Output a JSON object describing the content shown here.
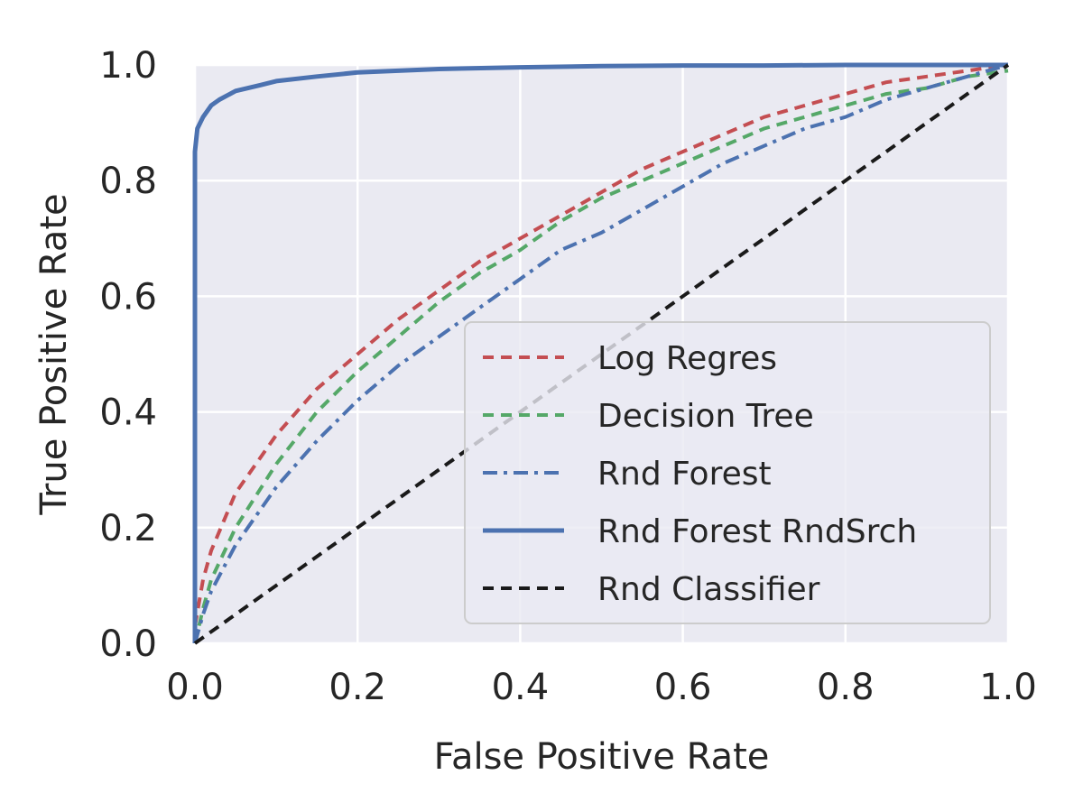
{
  "chart_data": {
    "type": "line",
    "title": "",
    "xlabel": "False Positive Rate",
    "ylabel": "True Positive Rate",
    "xlim": [
      0.0,
      1.0
    ],
    "ylim": [
      0.0,
      1.0
    ],
    "x_ticks": [
      "0.0",
      "0.2",
      "0.4",
      "0.6",
      "0.8",
      "1.0"
    ],
    "y_ticks": [
      "0.0",
      "0.2",
      "0.4",
      "0.6",
      "0.8",
      "1.0"
    ],
    "grid": true,
    "legend_position": "lower-right",
    "series": [
      {
        "name": "Log Regres",
        "color": "#c44e52",
        "style": "dashed",
        "x": [
          0.0,
          0.01,
          0.02,
          0.05,
          0.1,
          0.15,
          0.2,
          0.25,
          0.3,
          0.35,
          0.4,
          0.45,
          0.5,
          0.55,
          0.6,
          0.65,
          0.7,
          0.75,
          0.8,
          0.85,
          0.9,
          0.95,
          1.0
        ],
        "y": [
          0.03,
          0.11,
          0.16,
          0.26,
          0.36,
          0.44,
          0.5,
          0.56,
          0.61,
          0.66,
          0.7,
          0.74,
          0.78,
          0.82,
          0.85,
          0.88,
          0.91,
          0.93,
          0.95,
          0.97,
          0.98,
          0.99,
          1.0
        ]
      },
      {
        "name": "Decision Tree",
        "color": "#55a868",
        "style": "dashed",
        "x": [
          0.0,
          0.01,
          0.02,
          0.05,
          0.1,
          0.15,
          0.2,
          0.25,
          0.3,
          0.35,
          0.4,
          0.45,
          0.5,
          0.55,
          0.6,
          0.65,
          0.7,
          0.75,
          0.8,
          0.85,
          0.9,
          0.95,
          1.0
        ],
        "y": [
          0.0,
          0.06,
          0.11,
          0.2,
          0.31,
          0.4,
          0.47,
          0.53,
          0.59,
          0.64,
          0.68,
          0.73,
          0.77,
          0.8,
          0.83,
          0.86,
          0.89,
          0.91,
          0.93,
          0.95,
          0.96,
          0.98,
          0.99
        ]
      },
      {
        "name": "Rnd Forest",
        "color": "#4c72b0",
        "style": "dashdot",
        "x": [
          0.0,
          0.01,
          0.02,
          0.05,
          0.1,
          0.15,
          0.2,
          0.25,
          0.3,
          0.35,
          0.4,
          0.45,
          0.5,
          0.55,
          0.6,
          0.65,
          0.7,
          0.75,
          0.8,
          0.85,
          0.9,
          0.95,
          1.0
        ],
        "y": [
          0.0,
          0.05,
          0.09,
          0.17,
          0.27,
          0.35,
          0.42,
          0.48,
          0.53,
          0.58,
          0.63,
          0.68,
          0.71,
          0.75,
          0.79,
          0.83,
          0.86,
          0.89,
          0.91,
          0.94,
          0.96,
          0.98,
          1.0
        ]
      },
      {
        "name": "Rnd Forest RndSrch",
        "color": "#4c72b0",
        "style": "solid",
        "x": [
          0.0,
          0.0,
          0.003,
          0.01,
          0.02,
          0.03,
          0.05,
          0.08,
          0.1,
          0.15,
          0.2,
          0.3,
          0.4,
          0.5,
          0.6,
          0.7,
          0.8,
          0.9,
          1.0
        ],
        "y": [
          0.0,
          0.85,
          0.89,
          0.91,
          0.93,
          0.94,
          0.955,
          0.965,
          0.972,
          0.98,
          0.987,
          0.993,
          0.996,
          0.998,
          0.999,
          0.999,
          1.0,
          1.0,
          1.0
        ]
      },
      {
        "name": "Rnd Classifier",
        "color": "#1a1a1a",
        "style": "dashed",
        "x": [
          0.0,
          1.0
        ],
        "y": [
          0.0,
          1.0
        ]
      }
    ]
  }
}
